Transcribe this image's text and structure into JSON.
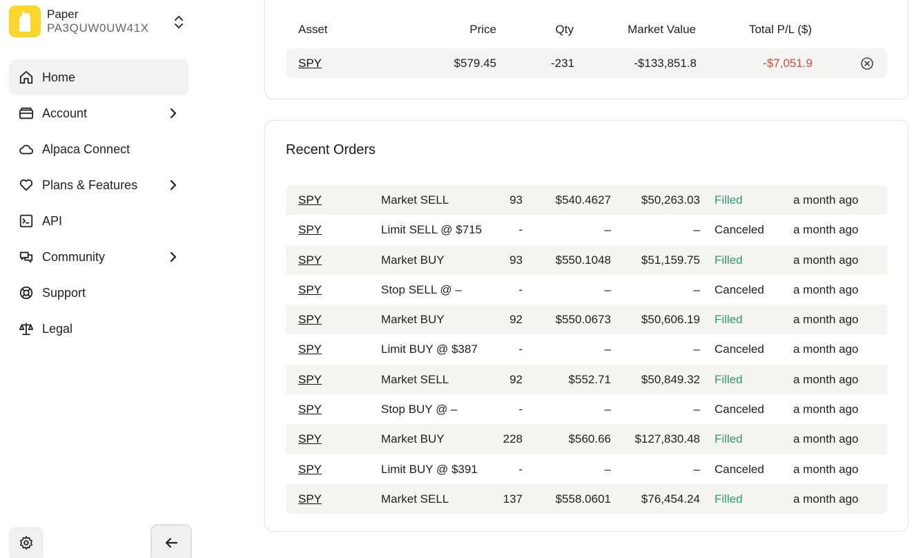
{
  "account": {
    "name": "Paper",
    "id": "PA3QUW0UW41X"
  },
  "nav": [
    {
      "label": "Home",
      "icon": "home-icon",
      "active": true,
      "chevron": false
    },
    {
      "label": "Account",
      "icon": "wallet-icon",
      "active": false,
      "chevron": true
    },
    {
      "label": "Alpaca Connect",
      "icon": "cloud-icon",
      "active": false,
      "chevron": false
    },
    {
      "label": "Plans & Features",
      "icon": "heart-icon",
      "active": false,
      "chevron": true
    },
    {
      "label": "API",
      "icon": "terminal-icon",
      "active": false,
      "chevron": false
    },
    {
      "label": "Community",
      "icon": "chat-icon",
      "active": false,
      "chevron": true
    },
    {
      "label": "Support",
      "icon": "lifebuoy-icon",
      "active": false,
      "chevron": false
    },
    {
      "label": "Legal",
      "icon": "scales-icon",
      "active": false,
      "chevron": false
    }
  ],
  "positions": {
    "columns": {
      "asset": "Asset",
      "price": "Price",
      "qty": "Qty",
      "market_value": "Market Value",
      "total_pl": "Total P/L ($)"
    },
    "rows": [
      {
        "asset": "SPY",
        "price": "$579.45",
        "qty": "-231",
        "market_value": "-$133,851.8",
        "total_pl": "-$7,051.9"
      }
    ]
  },
  "orders": {
    "title": "Recent Orders",
    "rows": [
      {
        "asset": "SPY",
        "type": "Market SELL",
        "qty": "93",
        "price": "$540.4627",
        "value": "$50,263.03",
        "status": "Filled",
        "time": "a month ago"
      },
      {
        "asset": "SPY",
        "type": "Limit SELL @ $715",
        "qty": "-",
        "price": "–",
        "value": "–",
        "status": "Canceled",
        "time": "a month ago"
      },
      {
        "asset": "SPY",
        "type": "Market BUY",
        "qty": "93",
        "price": "$550.1048",
        "value": "$51,159.75",
        "status": "Filled",
        "time": "a month ago"
      },
      {
        "asset": "SPY",
        "type": "Stop SELL @ –",
        "qty": "-",
        "price": "–",
        "value": "–",
        "status": "Canceled",
        "time": "a month ago"
      },
      {
        "asset": "SPY",
        "type": "Market BUY",
        "qty": "92",
        "price": "$550.0673",
        "value": "$50,606.19",
        "status": "Filled",
        "time": "a month ago"
      },
      {
        "asset": "SPY",
        "type": "Limit BUY @ $387",
        "qty": "-",
        "price": "–",
        "value": "–",
        "status": "Canceled",
        "time": "a month ago"
      },
      {
        "asset": "SPY",
        "type": "Market SELL",
        "qty": "92",
        "price": "$552.71",
        "value": "$50,849.32",
        "status": "Filled",
        "time": "a month ago"
      },
      {
        "asset": "SPY",
        "type": "Stop BUY @ –",
        "qty": "-",
        "price": "–",
        "value": "–",
        "status": "Canceled",
        "time": "a month ago"
      },
      {
        "asset": "SPY",
        "type": "Market BUY",
        "qty": "228",
        "price": "$560.66",
        "value": "$127,830.48",
        "status": "Filled",
        "time": "a month ago"
      },
      {
        "asset": "SPY",
        "type": "Limit BUY @ $391",
        "qty": "-",
        "price": "–",
        "value": "–",
        "status": "Canceled",
        "time": "a month ago"
      },
      {
        "asset": "SPY",
        "type": "Market SELL",
        "qty": "137",
        "price": "$558.0601",
        "value": "$76,454.24",
        "status": "Filled",
        "time": "a month ago"
      }
    ]
  },
  "colors": {
    "brand_yellow": "#fcd72b",
    "filled_green": "#2f9a6a",
    "loss_red": "#e04a3a"
  }
}
